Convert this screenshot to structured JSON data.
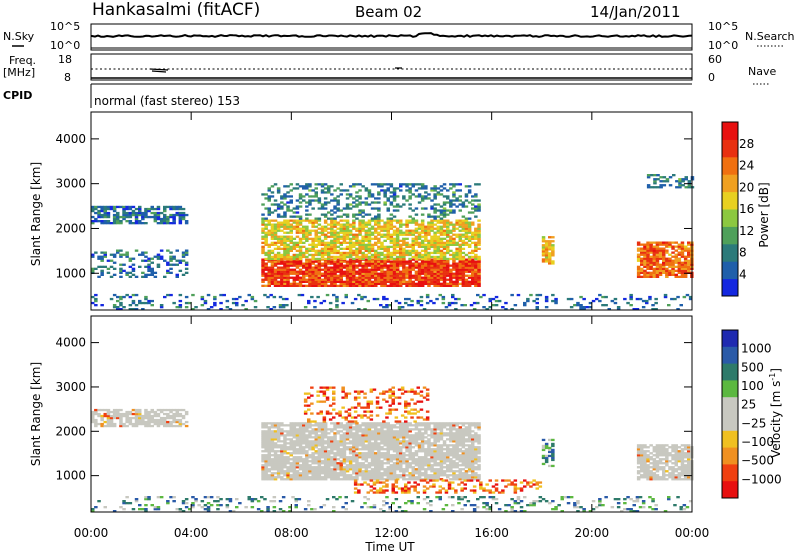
{
  "header": {
    "station": "Hankasalmi (fitACF)",
    "beam": "Beam 02",
    "date": "14/Jan/2011"
  },
  "strips": {
    "nsky_label": "N.Sky",
    "nsearch_label": "N.Search",
    "freq_label_1": "Freq.",
    "freq_label_2": "[MHz]",
    "nave_label": "Nave",
    "cpid_label": "CPID",
    "cpid_value": "normal (fast stereo) 153",
    "noise_ticks_left": [
      "10^5",
      "10^0"
    ],
    "noise_ticks_right": [
      "10^5",
      "10^0"
    ],
    "freq_ticks_left": [
      "18",
      "8"
    ],
    "nave_ticks_right": [
      "60",
      "0"
    ]
  },
  "colors": {
    "power_scale": [
      "#1428e0",
      "#1f5faa",
      "#2b7a7a",
      "#4fa05a",
      "#8cc840",
      "#e8d020",
      "#f0a020",
      "#f07010",
      "#e83010",
      "#e81010"
    ],
    "velocity_scale": [
      "#1f2ab0",
      "#2a5aa8",
      "#2e7a6a",
      "#5cb840",
      "#c8c8c0",
      "#c8c8c0",
      "#f0c020",
      "#f09020",
      "#f04010",
      "#e81010"
    ],
    "ground_scatter": "#c8c8c0"
  },
  "chart_data": [
    {
      "type": "heatmap",
      "title": "",
      "xlabel": "Time UT",
      "ylabel": "Slant Range [km]",
      "colorbar_label": "Power [dB]",
      "x_ticks": [
        "00:00",
        "04:00",
        "08:00",
        "12:00",
        "16:00",
        "20:00",
        "00:00"
      ],
      "x_range_hours": [
        0,
        24
      ],
      "y_ticks": [
        "1000",
        "2000",
        "3000",
        "4000"
      ],
      "y_tick_values": [
        1000,
        2000,
        3000,
        4000
      ],
      "ylim": [
        180,
        4600
      ],
      "colorbar_ticks": [
        "4",
        "8",
        "12",
        "16",
        "20",
        "24",
        "28"
      ],
      "colorbar_range": [
        0,
        32
      ],
      "regions": [
        {
          "t0": 0.0,
          "t1": 3.8,
          "r0": 2100,
          "r1": 2500,
          "level": 6,
          "density": 0.7
        },
        {
          "t0": 0.0,
          "t1": 3.8,
          "r0": 900,
          "r1": 1500,
          "level": 7,
          "density": 0.35
        },
        {
          "t0": 6.8,
          "t1": 15.5,
          "r0": 700,
          "r1": 1300,
          "level": 27,
          "density": 0.9
        },
        {
          "t0": 6.8,
          "t1": 15.5,
          "r0": 1300,
          "r1": 2200,
          "level": 18,
          "density": 0.75
        },
        {
          "t0": 6.8,
          "t1": 15.5,
          "r0": 2200,
          "r1": 3000,
          "level": 8,
          "density": 0.35
        },
        {
          "t0": 18.0,
          "t1": 18.4,
          "r0": 1200,
          "r1": 1800,
          "level": 20,
          "density": 0.7
        },
        {
          "t0": 21.8,
          "t1": 24.0,
          "r0": 900,
          "r1": 1700,
          "level": 24,
          "density": 0.85
        },
        {
          "t0": 22.2,
          "t1": 24.0,
          "r0": 2900,
          "r1": 3200,
          "level": 8,
          "density": 0.5
        },
        {
          "t0": 0.0,
          "t1": 24.0,
          "r0": 180,
          "r1": 500,
          "level": 6,
          "density": 0.2
        }
      ]
    },
    {
      "type": "heatmap",
      "title": "",
      "xlabel": "Time UT",
      "ylabel": "Slant Range [km]",
      "colorbar_label": "Velocity [m s^-1]",
      "x_ticks": [
        "00:00",
        "04:00",
        "08:00",
        "12:00",
        "16:00",
        "20:00",
        "00:00"
      ],
      "x_range_hours": [
        0,
        24
      ],
      "y_ticks": [
        "1000",
        "2000",
        "3000",
        "4000"
      ],
      "y_tick_values": [
        1000,
        2000,
        3000,
        4000
      ],
      "ylim": [
        180,
        4600
      ],
      "colorbar_ticks": [
        "1000",
        "500",
        "100",
        "25",
        "−25",
        "−100",
        "−500",
        "−1000"
      ],
      "regions": [
        {
          "t0": 0.0,
          "t1": 3.8,
          "r0": 2100,
          "r1": 2500,
          "level": "gs",
          "density": 0.7
        },
        {
          "t0": 6.8,
          "t1": 15.5,
          "r0": 900,
          "r1": 2200,
          "level": "gs",
          "density": 0.85
        },
        {
          "t0": 8.5,
          "t1": 13.5,
          "r0": 2200,
          "r1": 3000,
          "level": "neg",
          "density": 0.3
        },
        {
          "t0": 10.5,
          "t1": 18.0,
          "r0": 600,
          "r1": 900,
          "level": "neg",
          "density": 0.4
        },
        {
          "t0": 18.0,
          "t1": 18.4,
          "r0": 1200,
          "r1": 1800,
          "level": "pos",
          "density": 0.6
        },
        {
          "t0": 21.8,
          "t1": 24.0,
          "r0": 900,
          "r1": 1700,
          "level": "gs",
          "density": 0.8
        },
        {
          "t0": 0.0,
          "t1": 24.0,
          "r0": 180,
          "r1": 500,
          "level": "pos",
          "density": 0.2
        }
      ]
    }
  ]
}
